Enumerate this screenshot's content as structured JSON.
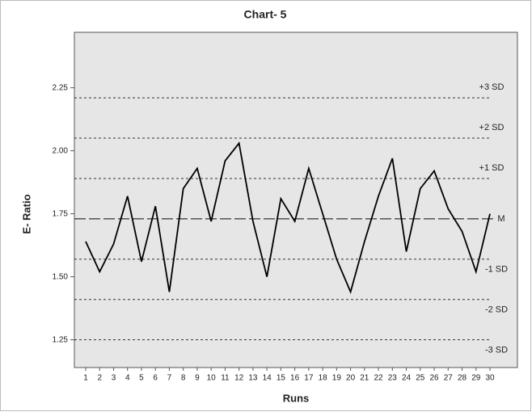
{
  "chart_data": {
    "type": "line",
    "title": "Chart- 5",
    "x_label": "Runs",
    "y_label": "E- Ratio",
    "categories": [
      "1",
      "2",
      "3",
      "4",
      "5",
      "6",
      "7",
      "8",
      "9",
      "10",
      "11",
      "12",
      "13",
      "14",
      "15",
      "16",
      "17",
      "18",
      "19",
      "20",
      "21",
      "22",
      "23",
      "24",
      "25",
      "26",
      "27",
      "28",
      "29",
      "30"
    ],
    "series": [
      {
        "name": "E- Ratio",
        "color": "#000000",
        "values": [
          1.64,
          1.52,
          1.63,
          1.82,
          1.56,
          1.78,
          1.44,
          1.85,
          1.93,
          1.72,
          1.96,
          2.03,
          1.72,
          1.5,
          1.81,
          1.72,
          1.93,
          1.75,
          1.57,
          1.44,
          1.64,
          1.82,
          1.97,
          1.6,
          1.85,
          1.92,
          1.77,
          1.68,
          1.52,
          1.75
        ]
      }
    ],
    "ylim": [
      1.14,
      2.47
    ],
    "yticks": [
      {
        "value": 1.25,
        "label": "1.25"
      },
      {
        "value": 1.5,
        "label": "1.50"
      },
      {
        "value": 1.75,
        "label": "1.75"
      },
      {
        "value": 2.0,
        "label": "2.00"
      },
      {
        "value": 2.25,
        "label": "2.25"
      }
    ],
    "reference_lines": [
      {
        "label": "+3 SD",
        "value": 2.21,
        "style": "dotted"
      },
      {
        "label": "+2 SD",
        "value": 2.05,
        "style": "dotted"
      },
      {
        "label": "+1 SD",
        "value": 1.89,
        "style": "dotted"
      },
      {
        "label": "M",
        "value": 1.73,
        "style": "dashed"
      },
      {
        "label": "-1 SD",
        "value": 1.57,
        "style": "dotted"
      },
      {
        "label": "-2 SD",
        "value": 1.41,
        "style": "dotted"
      },
      {
        "label": "-3 SD",
        "value": 1.25,
        "style": "dotted"
      }
    ],
    "background": "#e6e6e6"
  }
}
